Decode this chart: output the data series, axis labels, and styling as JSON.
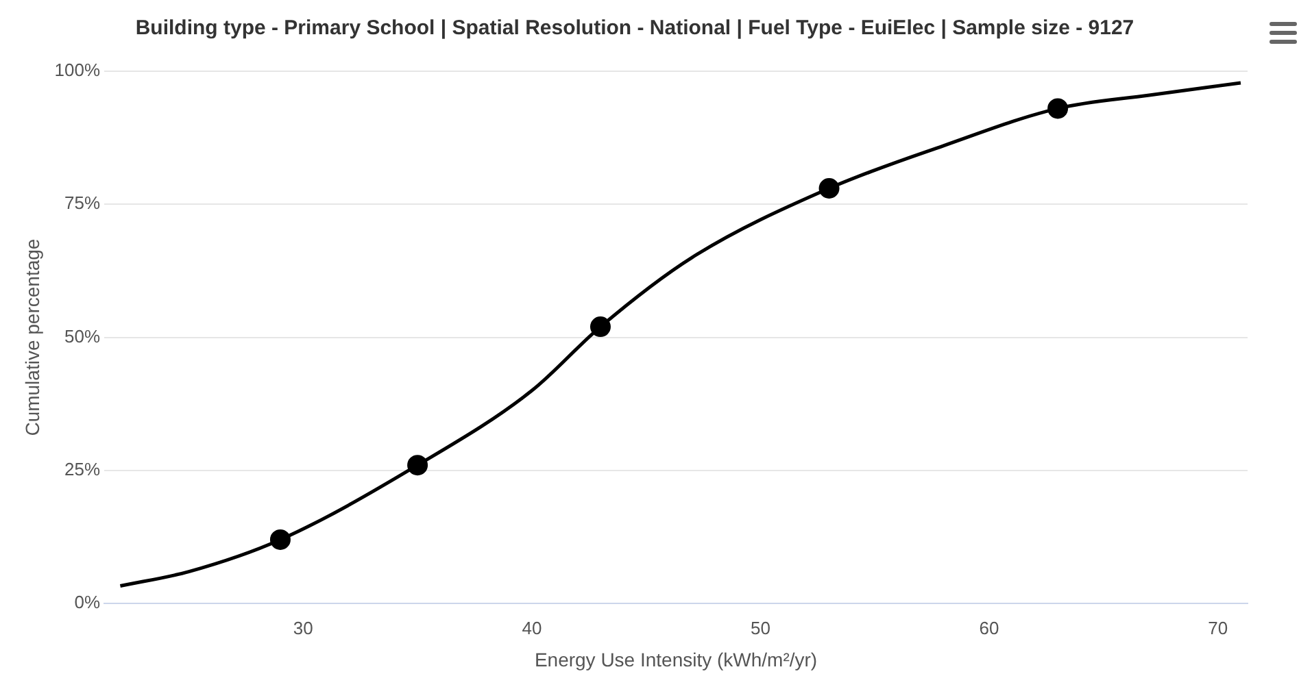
{
  "chart_data": {
    "type": "line",
    "title": "Building type - Primary School | Spatial Resolution - National | Fuel Type - EuiElec | Sample size - 9127",
    "xlabel": "Energy Use Intensity (kWh/m²/yr)",
    "ylabel": "Cumulative percentage",
    "series": [
      {
        "color": "#000000",
        "marker": "none",
        "x": [
          22,
          25,
          29,
          35,
          40,
          43,
          47,
          53,
          58,
          63,
          67,
          71
        ],
        "values": [
          3.3,
          6,
          12,
          26,
          40,
          52,
          65,
          78,
          86,
          93,
          95.5,
          97.8
        ]
      },
      {
        "type": "scatter",
        "color": "#000000",
        "marker": "circle",
        "x": [
          29,
          35,
          43,
          53,
          63
        ],
        "values": [
          12,
          26,
          52,
          78,
          93
        ]
      }
    ],
    "xlim": [
      21.3,
      71.3
    ],
    "xticks": [
      30,
      40,
      50,
      60,
      70
    ],
    "ylim": [
      0,
      100
    ],
    "yticks": [
      {
        "value": 0,
        "label": "0%"
      },
      {
        "value": 25,
        "label": "25%"
      },
      {
        "value": 50,
        "label": "50%"
      },
      {
        "value": 75,
        "label": "75%"
      },
      {
        "value": 100,
        "label": "100%"
      }
    ],
    "grid": "y",
    "legend": false
  }
}
